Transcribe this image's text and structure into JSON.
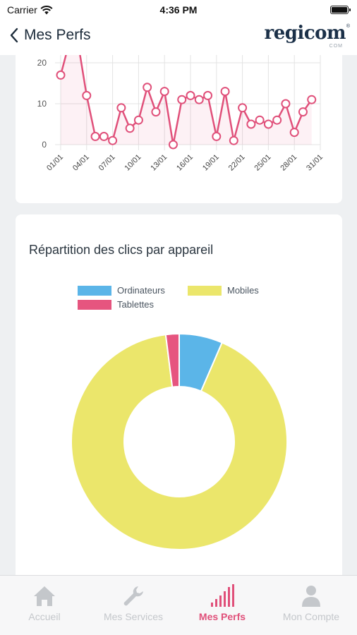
{
  "status": {
    "carrier": "Carrier",
    "time": "4:36 PM"
  },
  "nav": {
    "title": "Mes Perfs",
    "logo": "regicom",
    "logo_sub": "COM"
  },
  "line_chart": {
    "type": "line",
    "y_ticks": [
      "20",
      "10",
      "0"
    ],
    "ylim": [
      0,
      25
    ],
    "x_tick_labels": [
      "01/01",
      "04/01",
      "07/01",
      "10/01",
      "13/01",
      "16/01",
      "19/01",
      "22/01",
      "25/01",
      "28/01",
      "31/01"
    ],
    "x": [
      1,
      2,
      3,
      4,
      5,
      6,
      7,
      8,
      9,
      10,
      11,
      12,
      13,
      14,
      15,
      16,
      17,
      18,
      19,
      20,
      21,
      22,
      23,
      24,
      25,
      26,
      27,
      28,
      29,
      30,
      31
    ],
    "values": [
      17,
      25,
      25,
      12,
      2,
      2,
      1,
      9,
      4,
      6,
      14,
      8,
      13,
      0,
      11,
      12,
      11,
      12,
      2,
      13,
      1,
      9,
      5,
      6,
      5,
      6,
      10,
      3,
      8,
      11,
      null
    ],
    "color": "#e0507a"
  },
  "chart_data": {
    "type": "pie",
    "title": "Répartition des clics par appareil",
    "labels": [
      "Ordinateurs",
      "Mobiles",
      "Tablettes"
    ],
    "values": [
      6.5,
      91.5,
      2
    ],
    "colors": [
      "#5bb5e8",
      "#ebe66b",
      "#e6557f"
    ],
    "donut": true,
    "legend_position": "top"
  },
  "tabs": [
    {
      "label": "Accueil",
      "icon": "home-icon",
      "active": false
    },
    {
      "label": "Mes Services",
      "icon": "wrench-icon",
      "active": false
    },
    {
      "label": "Mes Perfs",
      "icon": "signal-bars-icon",
      "active": true
    },
    {
      "label": "Mon Compte",
      "icon": "user-icon",
      "active": false
    }
  ]
}
